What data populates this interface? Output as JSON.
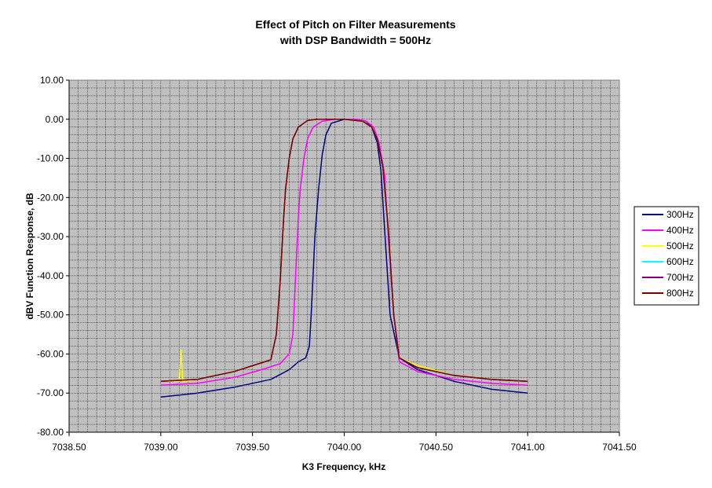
{
  "chart_data": {
    "type": "line",
    "title": "Effect of Pitch on Filter Measurements",
    "subtitle": "with DSP Bandwidth = 500Hz",
    "xlabel": "K3 Frequency, kHz",
    "ylabel": "dBV Function Response, dB",
    "xlim": [
      7038.5,
      7041.5
    ],
    "ylim": [
      -80,
      10
    ],
    "x_ticks": [
      "7038.50",
      "7039.00",
      "7039.50",
      "7040.00",
      "7040.50",
      "7041.00",
      "7041.50"
    ],
    "y_ticks": [
      "10.00",
      "0.00",
      "-10.00",
      "-20.00",
      "-30.00",
      "-40.00",
      "-50.00",
      "-60.00",
      "-70.00",
      "-80.00"
    ],
    "grid": true,
    "legend_position": "right",
    "series": [
      {
        "name": "300Hz",
        "color": "#000080",
        "x": [
          7039.0,
          7039.2,
          7039.4,
          7039.6,
          7039.7,
          7039.75,
          7039.79,
          7039.81,
          7039.82,
          7039.83,
          7039.84,
          7039.86,
          7039.88,
          7039.9,
          7039.93,
          7040.0,
          7040.07,
          7040.12,
          7040.15,
          7040.18,
          7040.2,
          7040.22,
          7040.25,
          7040.3,
          7040.4,
          7040.6,
          7040.8,
          7041.0
        ],
        "y": [
          -71,
          -70,
          -68.5,
          -66.5,
          -64,
          -62,
          -61,
          -58,
          -50,
          -40,
          -30,
          -18,
          -9,
          -4,
          -1,
          0,
          0,
          -0.5,
          -2,
          -6,
          -13,
          -28,
          -50,
          -61,
          -64,
          -67,
          -69,
          -70
        ]
      },
      {
        "name": "400Hz",
        "color": "#ff00ff",
        "x": [
          7039.0,
          7039.2,
          7039.4,
          7039.55,
          7039.65,
          7039.7,
          7039.72,
          7039.73,
          7039.74,
          7039.75,
          7039.76,
          7039.78,
          7039.8,
          7039.83,
          7039.88,
          7039.95,
          7040.0,
          7040.07,
          7040.12,
          7040.16,
          7040.19,
          7040.22,
          7040.24,
          7040.27,
          7040.3,
          7040.4,
          7040.6,
          7040.8,
          7041.0
        ],
        "y": [
          -68,
          -67.5,
          -66,
          -64,
          -62.5,
          -60,
          -55,
          -45,
          -35,
          -25,
          -18,
          -10,
          -5,
          -2,
          -0.5,
          0,
          0,
          0,
          -0.5,
          -2,
          -6,
          -14,
          -30,
          -50,
          -62,
          -64.5,
          -66.5,
          -67.5,
          -68
        ]
      },
      {
        "name": "500Hz",
        "color": "#ffff00",
        "x": [
          7039.0,
          7039.08,
          7039.1,
          7039.11,
          7039.12,
          7039.13,
          7039.2,
          7039.4,
          7039.6,
          7039.63,
          7039.65,
          7039.67,
          7039.68,
          7039.7,
          7039.72,
          7039.75,
          7039.8,
          7039.85,
          7039.9,
          7040.0,
          7040.1,
          7040.15,
          7040.18,
          7040.21,
          7040.24,
          7040.27,
          7040.3,
          7040.4,
          7040.6,
          7040.8,
          7041.0
        ],
        "y": [
          -67,
          -67,
          -67,
          -59,
          -67,
          -67,
          -66.5,
          -64.5,
          -61.5,
          -55,
          -42,
          -25,
          -18,
          -10,
          -5,
          -2,
          -0.3,
          0,
          0,
          0,
          -0.5,
          -2,
          -5,
          -12,
          -28,
          -50,
          -61,
          -63,
          -65.5,
          -66.5,
          -67
        ]
      },
      {
        "name": "600Hz",
        "color": "#00ffff",
        "x": [
          7039.0,
          7039.2,
          7039.4,
          7039.6,
          7039.63,
          7039.65,
          7039.67,
          7039.68,
          7039.7,
          7039.72,
          7039.75,
          7039.8,
          7039.85,
          7039.9,
          7040.0,
          7040.1,
          7040.15,
          7040.18,
          7040.21,
          7040.24,
          7040.27,
          7040.3,
          7040.4,
          7040.6,
          7040.8,
          7041.0
        ],
        "y": [
          -67,
          -66.5,
          -64.5,
          -61.5,
          -55,
          -42,
          -25,
          -18,
          -10,
          -5,
          -2,
          -0.3,
          0,
          0,
          0,
          -0.5,
          -2,
          -5,
          -12,
          -28,
          -50,
          -61,
          -63.5,
          -65.5,
          -66.5,
          -67
        ]
      },
      {
        "name": "700Hz",
        "color": "#800080",
        "x": [
          7039.0,
          7039.2,
          7039.4,
          7039.6,
          7039.63,
          7039.65,
          7039.67,
          7039.68,
          7039.7,
          7039.72,
          7039.75,
          7039.8,
          7039.85,
          7039.9,
          7040.0,
          7040.1,
          7040.15,
          7040.18,
          7040.21,
          7040.24,
          7040.27,
          7040.3,
          7040.4,
          7040.6,
          7040.8,
          7041.0
        ],
        "y": [
          -67,
          -66.5,
          -64.5,
          -61.5,
          -55,
          -42,
          -25,
          -18,
          -10,
          -5,
          -2,
          -0.3,
          0,
          0,
          0,
          -0.5,
          -2,
          -5,
          -12,
          -28,
          -50,
          -61,
          -63.5,
          -65.5,
          -66.5,
          -67
        ]
      },
      {
        "name": "800Hz",
        "color": "#800000",
        "x": [
          7039.0,
          7039.2,
          7039.4,
          7039.6,
          7039.63,
          7039.65,
          7039.67,
          7039.68,
          7039.7,
          7039.72,
          7039.75,
          7039.8,
          7039.85,
          7039.9,
          7040.0,
          7040.1,
          7040.15,
          7040.18,
          7040.21,
          7040.24,
          7040.27,
          7040.3,
          7040.4,
          7040.6,
          7040.8,
          7041.0
        ],
        "y": [
          -67,
          -66.5,
          -64.5,
          -61.5,
          -55,
          -42,
          -25,
          -18,
          -10,
          -5,
          -2,
          -0.3,
          0,
          0,
          0,
          -0.5,
          -2,
          -5,
          -12,
          -28,
          -50,
          -61,
          -63.5,
          -65.5,
          -66.5,
          -67
        ]
      }
    ]
  }
}
